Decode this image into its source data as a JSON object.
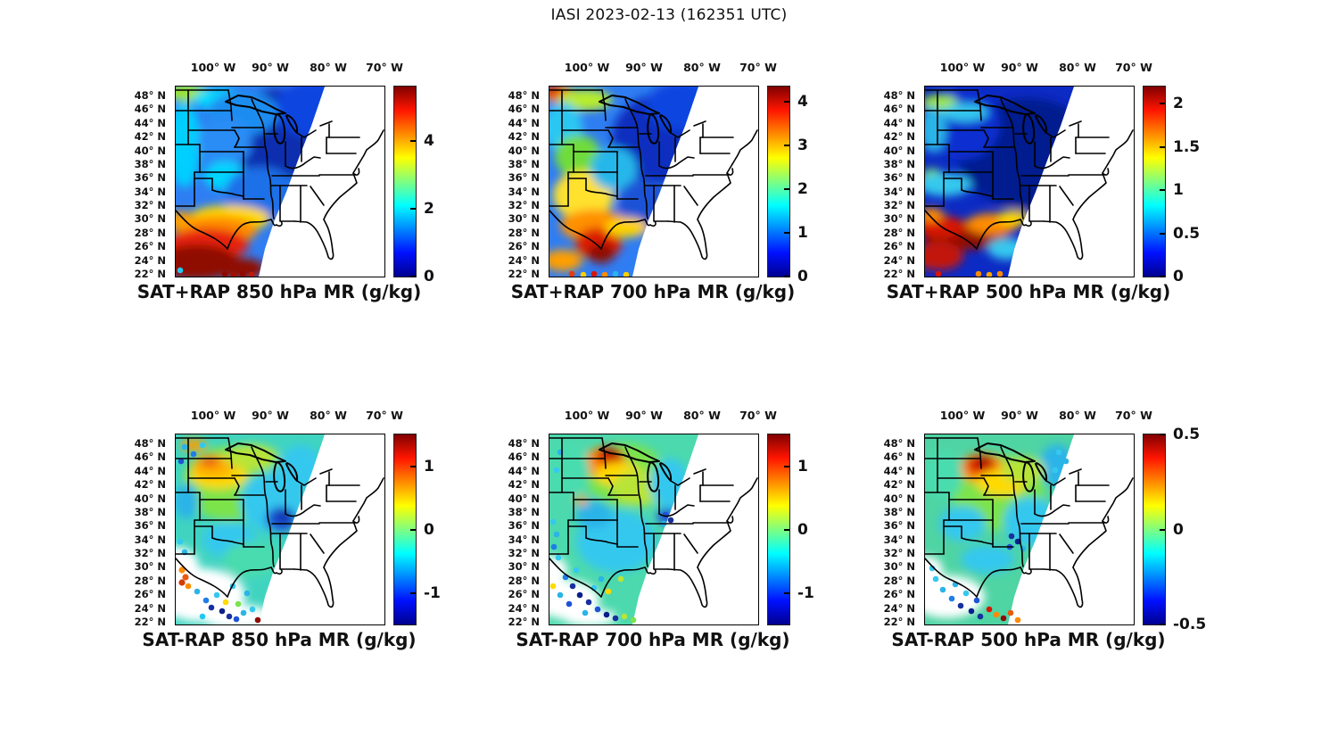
{
  "figure": {
    "title": "IASI 2023-02-13 (162351 UTC)",
    "background": "#ffffff"
  },
  "axes": {
    "lon_ticks": [
      "100° W",
      "90° W",
      "80° W",
      "70° W"
    ],
    "lat_ticks": [
      "48° N",
      "46° N",
      "44° N",
      "42° N",
      "40° N",
      "38° N",
      "36° N",
      "34° N",
      "32° N",
      "30° N",
      "28° N",
      "26° N",
      "24° N",
      "22° N"
    ]
  },
  "colormap": {
    "name": "jet",
    "stops": [
      "#00008f",
      "#0010ff",
      "#00ffff",
      "#ffff00",
      "#ff1500",
      "#800000"
    ]
  },
  "panels": [
    {
      "id": "sat-plus-rap-850",
      "title": "SAT+RAP 850 hPa MR (g/kg)",
      "colorbar": {
        "min": 0,
        "max": 5.6,
        "ticks": [
          {
            "label": "4",
            "value": 4
          },
          {
            "label": "2",
            "value": 2
          },
          {
            "label": "0",
            "value": 0
          }
        ]
      }
    },
    {
      "id": "sat-plus-rap-700",
      "title": "SAT+RAP 700 hPa MR (g/kg)",
      "colorbar": {
        "min": 0,
        "max": 4.35,
        "ticks": [
          {
            "label": "4",
            "value": 4
          },
          {
            "label": "3",
            "value": 3
          },
          {
            "label": "2",
            "value": 2
          },
          {
            "label": "1",
            "value": 1
          },
          {
            "label": "0",
            "value": 0
          }
        ]
      }
    },
    {
      "id": "sat-plus-rap-500",
      "title": "SAT+RAP 500 hPa MR (g/kg)",
      "colorbar": {
        "min": 0,
        "max": 2.2,
        "ticks": [
          {
            "label": "2",
            "value": 2
          },
          {
            "label": "1.5",
            "value": 1.5
          },
          {
            "label": "1",
            "value": 1
          },
          {
            "label": "0.5",
            "value": 0.5
          },
          {
            "label": "0",
            "value": 0
          }
        ]
      }
    },
    {
      "id": "sat-minus-rap-850",
      "title": "SAT-RAP 850 hPa MR (g/kg)",
      "colorbar": {
        "min": -1.5,
        "max": 1.5,
        "ticks": [
          {
            "label": "1",
            "value": 1
          },
          {
            "label": "0",
            "value": 0
          },
          {
            "label": "-1",
            "value": -1
          }
        ]
      }
    },
    {
      "id": "sat-minus-rap-700",
      "title": "SAT-RAP 700 hPa MR (g/kg)",
      "colorbar": {
        "min": -1.5,
        "max": 1.5,
        "ticks": [
          {
            "label": "1",
            "value": 1
          },
          {
            "label": "0",
            "value": 0
          },
          {
            "label": "-1",
            "value": -1
          }
        ]
      }
    },
    {
      "id": "sat-minus-rap-500",
      "title": "SAT-RAP 500 hPa MR (g/kg)",
      "colorbar": {
        "min": -0.5,
        "max": 0.5,
        "ticks": [
          {
            "label": "0.5",
            "value": 0.5
          },
          {
            "label": "0",
            "value": 0
          },
          {
            "label": "-0.5",
            "value": -0.5
          }
        ]
      }
    }
  ],
  "chart_data": {
    "shared": {
      "instrument": "IASI",
      "date": "2023-02-13",
      "time_utc": "162351",
      "region": "central and eastern United States",
      "lon_ticks_deg_w": [
        100,
        90,
        80,
        70
      ],
      "lat_ticks_deg_n": [
        48,
        46,
        44,
        42,
        40,
        38,
        36,
        34,
        32,
        30,
        28,
        26,
        24,
        22
      ],
      "colormap": "jet",
      "no_data_region": "white area east of the satellite swath edge (diagonal from the upper Great Lakes to Louisiana)"
    },
    "panels": [
      {
        "type": "heatmap",
        "title": "SAT+RAP 850 hPa MR (g/kg)",
        "operation": "SAT+RAP",
        "pressure_hPa": 850,
        "quantity": "water vapor mixing ratio",
        "units": "g/kg",
        "value_range": [
          0,
          5.6
        ],
        "colorbar_ticks": [
          0,
          2,
          4
        ],
        "summary": "4-5.6 g/kg (red/dark red) over south Texas, the Rio Grande and Gulf coast; 2-3 g/kg (cyan/green) along the northwest edge of the swath; 0.5-1.5 g/kg (blue/dark blue) over the Midwest, Great Lakes and Mississippi valley."
      },
      {
        "type": "heatmap",
        "title": "SAT+RAP 700 hPa MR (g/kg)",
        "operation": "SAT+RAP",
        "pressure_hPa": 700,
        "quantity": "water vapor mixing ratio",
        "units": "g/kg",
        "value_range": [
          0,
          4.35
        ],
        "colorbar_ticks": [
          0,
          1,
          2,
          3,
          4
        ],
        "summary": "Maximum ~4 g/kg (red) over south Texas; orange patch in the northwest corner; yellow/green 2-3 g/kg over the southern plains; dark blue <1 g/kg over the upper Midwest and Ohio valley."
      },
      {
        "type": "heatmap",
        "title": "SAT+RAP 500 hPa MR (g/kg)",
        "operation": "SAT+RAP",
        "pressure_hPa": 500,
        "quantity": "water vapor mixing ratio",
        "units": "g/kg",
        "value_range": [
          0,
          2.2
        ],
        "colorbar_ticks": [
          0,
          0.5,
          1,
          1.5,
          2
        ],
        "summary": "Mostly <0.5 g/kg (dark blue); red band ~2 g/kg arcing across south Texas toward the Gulf coast; green/cyan streaks in the northwest corner of the swath."
      },
      {
        "type": "heatmap",
        "title": "SAT-RAP 850 hPa MR (g/kg)",
        "operation": "SAT-RAP",
        "pressure_hPa": 850,
        "quantity": "mixing ratio difference",
        "units": "g/kg",
        "value_range": [
          -1.5,
          1.5
        ],
        "colorbar_ticks": [
          -1,
          0,
          1
        ],
        "summary": "Differences mostly near 0 (green/cyan); +0.5 to +1 (yellow/orange) over the Dakotas/Minnesota; -0.5 to -1 (blue) pocket near the mid-Mississippi valley; scattered +/-1 to 1.5 outlier dots (orange and dark blue) along the Texas and Gulf coasts."
      },
      {
        "type": "heatmap",
        "title": "SAT-RAP 700 hPa MR (g/kg)",
        "operation": "SAT-RAP",
        "pressure_hPa": 700,
        "quantity": "mixing ratio difference",
        "units": "g/kg",
        "value_range": [
          -1.5,
          1.5
        ],
        "colorbar_ticks": [
          -1,
          0,
          1
        ],
        "summary": "+1 to +1.5 (red) maximum over Minnesota/Wisconsin; near-zero (green/cyan) elsewhere; cluster of -1 to -1.5 (dark blue) dots over Texas and the western Gulf coast."
      },
      {
        "type": "heatmap",
        "title": "SAT-RAP 500 hPa MR (g/kg)",
        "operation": "SAT-RAP",
        "pressure_hPa": 500,
        "quantity": "mixing ratio difference",
        "units": "g/kg",
        "value_range": [
          -0.5,
          0.5
        ],
        "colorbar_ticks": [
          -0.5,
          0,
          0.5
        ],
        "summary": "+0.3 to +0.5 (red) over Minnesota/Wisconsin; near 0 (green) over most of the swath; -0.3 to -0.5 (dark blue) dots over the lower Mississippi valley and Texas coast, with mixed warm/cold outliers at the south edge."
      }
    ]
  }
}
